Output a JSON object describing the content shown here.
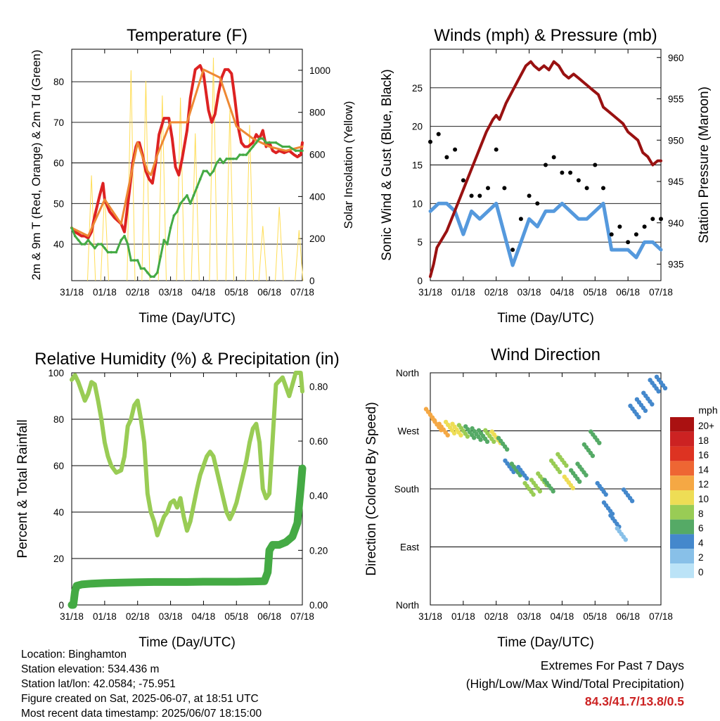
{
  "chart_data": [
    {
      "type": "line",
      "title": "Temperature (F)",
      "xlabel": "Time (Day/UTC)",
      "ylabel": "2m & 9m T (Red, Orange) & 2m Td (Green)",
      "ylabel_right": "Solar Insolation (Yellow)",
      "x_ticks": [
        "31/18",
        "01/18",
        "02/18",
        "03/18",
        "04/18",
        "05/18",
        "06/18",
        "07/18"
      ],
      "ylim": [
        31,
        88
      ],
      "y_ticks": [
        40,
        50,
        60,
        70,
        80
      ],
      "ylim_right": [
        0,
        1100
      ],
      "y_ticks_right": [
        0,
        200,
        400,
        600,
        800,
        1000
      ],
      "grid": true,
      "series": [
        {
          "key": "t2m",
          "color": "#dd2222",
          "x": [
            0,
            0.05,
            0.1,
            0.2,
            0.3,
            0.4,
            0.5,
            0.6,
            0.7,
            0.85,
            0.95,
            1.0,
            1.15,
            1.3,
            1.5,
            1.6,
            1.75,
            1.85,
            1.95,
            2.0,
            2.05,
            2.15,
            2.25,
            2.35,
            2.45,
            2.55,
            2.65,
            2.8,
            2.95,
            3.05,
            3.15,
            3.25,
            3.35,
            3.5,
            3.6,
            3.75,
            3.9,
            4.0,
            4.1,
            4.15,
            4.25,
            4.35,
            4.45,
            4.55,
            4.65,
            4.75,
            4.85,
            4.95,
            5.05,
            5.15,
            5.25,
            5.35,
            5.5,
            5.6,
            5.7,
            5.8,
            5.9,
            6.0,
            6.1,
            6.2,
            6.3,
            6.45,
            6.6,
            6.75,
            6.85,
            6.95,
            7.0
          ],
          "y": [
            44,
            43.5,
            43,
            42.5,
            42,
            42,
            41.5,
            43,
            47,
            52,
            55,
            51,
            48,
            46.5,
            45,
            43,
            53,
            60,
            64,
            65,
            65,
            62,
            58,
            56,
            55,
            60,
            67,
            71,
            71,
            66,
            59,
            57,
            61,
            68,
            76,
            83,
            84,
            82,
            76,
            73,
            70,
            72,
            77,
            81,
            83,
            83,
            82,
            76,
            69,
            65,
            64,
            64,
            65,
            67,
            66,
            68,
            64,
            65,
            63,
            62.5,
            63,
            62.5,
            63,
            62,
            61.5,
            62,
            65
          ]
        },
        {
          "key": "t9m",
          "color": "#ee8833",
          "x": [
            0,
            0.5,
            1.0,
            1.5,
            2.0,
            2.3,
            2.4,
            2.6,
            3.0,
            3.5,
            4.0,
            4.5,
            5.0,
            5.5,
            6.0,
            6.5,
            7.0
          ],
          "y": [
            44,
            42,
            51,
            45,
            65,
            58,
            57,
            62,
            70,
            70,
            83,
            81,
            69,
            66,
            64,
            63,
            64
          ]
        },
        {
          "key": "td2m",
          "color": "#44aa44",
          "x": [
            0,
            0.1,
            0.2,
            0.3,
            0.4,
            0.5,
            0.6,
            0.7,
            0.8,
            0.9,
            1.0,
            1.1,
            1.2,
            1.35,
            1.5,
            1.6,
            1.7,
            1.8,
            1.9,
            2.0,
            2.1,
            2.2,
            2.3,
            2.4,
            2.5,
            2.6,
            2.7,
            2.8,
            2.9,
            3.0,
            3.1,
            3.2,
            3.3,
            3.4,
            3.5,
            3.6,
            3.7,
            3.8,
            3.9,
            4.0,
            4.1,
            4.2,
            4.3,
            4.4,
            4.5,
            4.6,
            4.7,
            4.8,
            4.9,
            5.0,
            5.1,
            5.2,
            5.3,
            5.4,
            5.5,
            5.6,
            5.7,
            5.8,
            5.9,
            6.0,
            6.2,
            6.4,
            6.6,
            6.8,
            7.0
          ],
          "y": [
            44,
            42,
            41,
            40,
            40,
            41,
            40,
            39,
            40,
            40,
            39,
            38,
            38,
            38,
            41,
            42,
            40,
            36,
            36,
            36,
            34,
            34,
            33,
            32,
            32,
            33,
            37,
            41,
            40,
            44,
            47,
            48,
            50,
            51,
            52,
            50,
            52,
            54,
            56,
            58,
            58,
            57,
            58,
            60,
            61,
            60,
            61,
            61,
            61,
            61,
            62,
            62,
            62,
            63,
            64,
            65,
            66,
            66,
            65,
            65,
            65,
            64,
            64,
            63,
            63
          ]
        },
        {
          "key": "solar",
          "color": "#ffdd55",
          "axis": "right",
          "note": "daily insolation cycles, peaks per day",
          "x": [
            0.6,
            1.0,
            1.8,
            2.25,
            2.75,
            3.3,
            3.75,
            4.3,
            4.8,
            5.4,
            5.8,
            6.3,
            6.9
          ],
          "y": [
            500,
            430,
            1000,
            950,
            880,
            870,
            700,
            1060,
            810,
            740,
            260,
            350,
            240
          ]
        }
      ]
    },
    {
      "type": "scatter",
      "title": "Winds (mph) & Pressure (mb)",
      "xlabel": "Time (Day/UTC)",
      "ylabel": "Sonic Wind & Gust (Blue, Black)",
      "ylabel_right": "Station Pressure (Maroon)",
      "x_ticks": [
        "31/18",
        "01/18",
        "02/18",
        "03/18",
        "04/18",
        "05/18",
        "06/18",
        "07/18"
      ],
      "ylim": [
        0,
        30
      ],
      "y_ticks": [
        0,
        5,
        10,
        15,
        20,
        25
      ],
      "ylim_right": [
        933,
        961
      ],
      "y_ticks_right": [
        935,
        940,
        945,
        950,
        955,
        960
      ],
      "grid": true,
      "series": [
        {
          "key": "wind",
          "color": "#5599dd",
          "x": [
            0,
            0.25,
            0.5,
            0.75,
            1.0,
            1.25,
            1.5,
            1.75,
            2.0,
            2.25,
            2.5,
            2.75,
            3.0,
            3.25,
            3.5,
            3.75,
            4.0,
            4.25,
            4.5,
            4.75,
            5.0,
            5.25,
            5.5,
            5.75,
            6.0,
            6.25,
            6.5,
            6.75,
            7.0
          ],
          "y": [
            9,
            10,
            10,
            9,
            6,
            9,
            8,
            9,
            10,
            6,
            2,
            5,
            8,
            7,
            9,
            9,
            10,
            9,
            8,
            8,
            9,
            10,
            4,
            4,
            4,
            3,
            5,
            5,
            4
          ]
        },
        {
          "key": "gust",
          "color": "#000000",
          "x": [
            0,
            0.25,
            0.5,
            0.75,
            1.0,
            1.25,
            1.5,
            1.75,
            2.0,
            2.25,
            2.5,
            2.75,
            3.0,
            3.25,
            3.5,
            3.75,
            4.0,
            4.25,
            4.5,
            4.75,
            5.0,
            5.25,
            5.5,
            5.75,
            6.0,
            6.25,
            6.5,
            6.75,
            7.0
          ],
          "y": [
            18,
            19,
            16,
            17,
            13,
            11,
            11,
            12,
            17,
            12,
            4,
            8,
            11,
            10,
            15,
            16,
            14,
            14,
            13,
            12,
            15,
            12,
            6,
            7,
            5,
            6,
            7,
            8,
            8
          ]
        },
        {
          "key": "pressure",
          "color": "#991111",
          "axis": "right",
          "x": [
            0,
            0.1,
            0.2,
            0.35,
            0.5,
            0.7,
            0.9,
            1.1,
            1.3,
            1.5,
            1.7,
            1.9,
            2.0,
            2.1,
            2.2,
            2.3,
            2.5,
            2.7,
            2.9,
            3.05,
            3.15,
            3.3,
            3.45,
            3.6,
            3.75,
            3.9,
            4.05,
            4.2,
            4.35,
            4.5,
            4.65,
            4.8,
            4.95,
            5.1,
            5.25,
            5.4,
            5.55,
            5.7,
            5.85,
            6.0,
            6.15,
            6.3,
            6.45,
            6.6,
            6.75,
            6.9,
            7.0
          ],
          "y": [
            933.5,
            935,
            937,
            938,
            939,
            941,
            943,
            945,
            947,
            949,
            951,
            952.5,
            953,
            952.5,
            953.5,
            954.5,
            956,
            957.5,
            959,
            959.5,
            959,
            958.5,
            959,
            958.5,
            959.5,
            959,
            958,
            957.5,
            958,
            957.5,
            957,
            956.5,
            956,
            955.5,
            954,
            953.5,
            953,
            952.5,
            952,
            951,
            950.5,
            950,
            948.5,
            948,
            947,
            947.5,
            947.5
          ]
        }
      ]
    },
    {
      "type": "line",
      "title": "Relative Humidity (%) & Precipitation (in)",
      "xlabel": "Time (Day/UTC)",
      "ylabel": "Percent & Total Rainfall",
      "x_ticks": [
        "31/18",
        "01/18",
        "02/18",
        "03/18",
        "04/18",
        "05/18",
        "06/18",
        "07/18"
      ],
      "ylim": [
        0,
        100
      ],
      "y_ticks": [
        0,
        20,
        40,
        60,
        80,
        100
      ],
      "ylim_right": [
        0,
        0.85
      ],
      "y_ticks_right": [
        "0.00",
        "0.20",
        "0.40",
        "0.60",
        "0.80"
      ],
      "grid": true,
      "series": [
        {
          "key": "rh",
          "color": "#99cc55",
          "x": [
            0,
            0.1,
            0.2,
            0.3,
            0.4,
            0.5,
            0.6,
            0.7,
            0.8,
            0.9,
            1.0,
            1.1,
            1.2,
            1.35,
            1.5,
            1.6,
            1.7,
            1.8,
            1.9,
            2.0,
            2.1,
            2.2,
            2.3,
            2.4,
            2.5,
            2.6,
            2.7,
            2.8,
            2.9,
            3.0,
            3.1,
            3.2,
            3.3,
            3.4,
            3.5,
            3.6,
            3.7,
            3.8,
            3.9,
            4.0,
            4.1,
            4.2,
            4.3,
            4.4,
            4.5,
            4.6,
            4.7,
            4.8,
            4.9,
            5.0,
            5.1,
            5.2,
            5.3,
            5.4,
            5.5,
            5.6,
            5.7,
            5.8,
            5.9,
            6.0,
            6.2,
            6.4,
            6.6,
            6.8,
            6.95,
            7.0
          ],
          "y": [
            97,
            99,
            96,
            92,
            88,
            91,
            96,
            95,
            88,
            80,
            70,
            64,
            60,
            57,
            58,
            64,
            77,
            80,
            86,
            88,
            80,
            70,
            48,
            40,
            36,
            30,
            34,
            38,
            40,
            44,
            45,
            42,
            46,
            38,
            32,
            36,
            43,
            50,
            56,
            60,
            64,
            66,
            64,
            58,
            52,
            46,
            40,
            37,
            40,
            44,
            50,
            56,
            62,
            70,
            76,
            78,
            70,
            50,
            46,
            48,
            95,
            98,
            90,
            100,
            100,
            92
          ]
        },
        {
          "key": "precip",
          "color": "#44aa44",
          "axis": "right",
          "x": [
            0,
            0.05,
            0.1,
            0.15,
            0.3,
            0.6,
            1.0,
            1.5,
            2.0,
            2.5,
            3.0,
            3.5,
            4.0,
            4.5,
            5.0,
            5.5,
            5.85,
            5.95,
            6.0,
            6.1,
            6.3,
            6.5,
            6.7,
            6.85,
            6.95,
            7.0
          ],
          "y": [
            0.0,
            0.0,
            0.05,
            0.07,
            0.075,
            0.078,
            0.08,
            0.082,
            0.083,
            0.084,
            0.084,
            0.084,
            0.085,
            0.085,
            0.085,
            0.086,
            0.087,
            0.12,
            0.2,
            0.22,
            0.22,
            0.23,
            0.25,
            0.3,
            0.43,
            0.5
          ]
        }
      ]
    },
    {
      "type": "scatter",
      "title": "Wind Direction",
      "xlabel": "Time (Day/UTC)",
      "ylabel": "Direction (Colored By Speed)",
      "x_ticks": [
        "31/18",
        "01/18",
        "02/18",
        "03/18",
        "04/18",
        "05/18",
        "06/18",
        "07/18"
      ],
      "y_ticks": [
        "North",
        "East",
        "South",
        "West",
        "North"
      ],
      "ylim": [
        0,
        360
      ],
      "grid": true,
      "legend": {
        "title": "mph",
        "position": "right",
        "labels": [
          "20+",
          "18",
          "16",
          "14",
          "12",
          "10",
          "8",
          "6",
          "4",
          "2",
          "0"
        ],
        "colors": [
          "#aa1111",
          "#cc2222",
          "#dd3322",
          "#ee6633",
          "#f5a844",
          "#eedd55",
          "#99cc55",
          "#55aa66",
          "#4488cc",
          "#88c0e8",
          "#bbe3f7"
        ]
      },
      "series": [
        {
          "key": "direction",
          "note": "dots colored by wind speed",
          "x": [
            0,
            0.2,
            0.4,
            0.6,
            0.8,
            1.0,
            1.2,
            1.4,
            1.6,
            1.8,
            2.0,
            2.2,
            2.4,
            2.6,
            2.8,
            3.0,
            3.2,
            3.4,
            3.6,
            3.8,
            4.0,
            4.2,
            4.4,
            4.6,
            4.8,
            5.0,
            5.2,
            5.4,
            5.6,
            5.8,
            6.0,
            6.2,
            6.4,
            6.6,
            6.8,
            7.0
          ],
          "y": [
            295,
            280,
            272,
            275,
            272,
            270,
            268,
            265,
            262,
            262,
            260,
            250,
            215,
            210,
            205,
            180,
            185,
            195,
            185,
            215,
            225,
            190,
            200,
            210,
            240,
            260,
            180,
            150,
            130,
            110,
            170,
            300,
            310,
            320,
            340,
            345
          ],
          "speed": [
            12,
            11,
            12,
            10,
            9,
            8,
            6,
            6,
            5,
            8,
            9,
            6,
            4,
            5,
            4,
            7,
            7,
            8,
            6,
            8,
            7,
            9,
            6,
            6,
            5,
            6,
            4,
            3,
            3,
            2,
            4,
            3,
            4,
            3,
            4,
            3
          ]
        }
      ]
    }
  ],
  "info": {
    "location": "Location: Binghamton",
    "elevation": "Station elevation: 534.436 m",
    "latlon": "Station lat/lon: 42.0584; -75.951",
    "created": "Figure created on Sat, 2025-06-07, at 18:51 UTC",
    "recent": "Most recent data timestamp: 2025/06/07 18:15:00"
  },
  "extremes": {
    "title": "Extremes For Past 7 Days",
    "subtitle": "(High/Low/Max Wind/Total Precipitation)",
    "values": "84.3/41.7/13.8/0.5"
  }
}
